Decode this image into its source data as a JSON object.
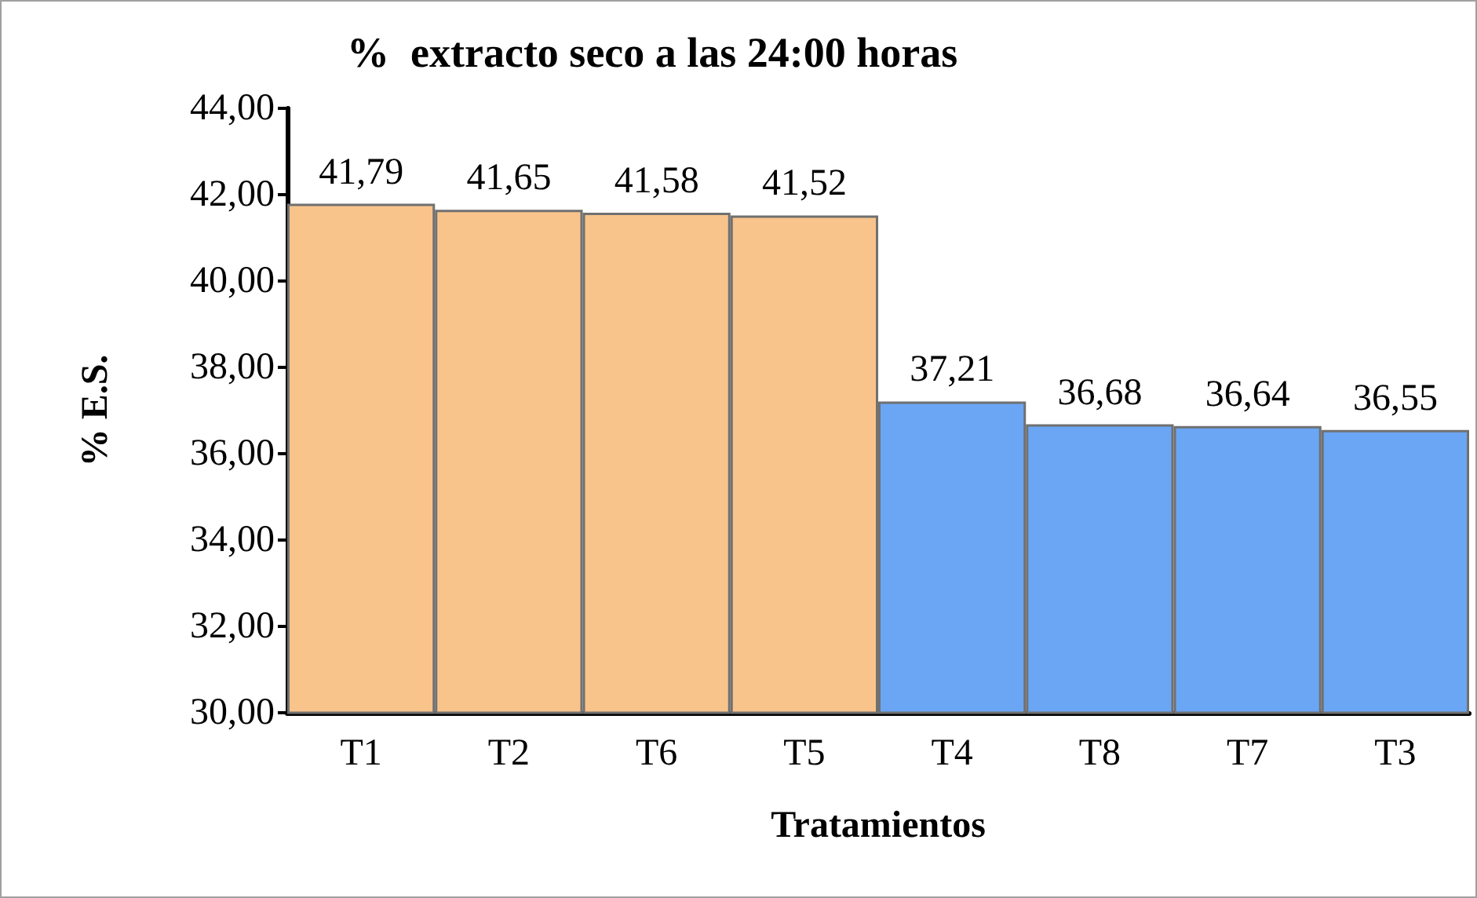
{
  "chart_data": {
    "type": "bar",
    "title": "%  extracto seco a las 24:00 horas",
    "xlabel": "Tratamientos",
    "ylabel": "% E.S.",
    "categories": [
      "T1",
      "T2",
      "T6",
      "T5",
      "T4",
      "T8",
      "T7",
      "T3"
    ],
    "values": [
      41.79,
      41.65,
      41.58,
      41.52,
      37.21,
      36.68,
      36.64,
      36.55
    ],
    "colors": [
      "#f8c48c",
      "#f8c48c",
      "#f8c48c",
      "#f8c48c",
      "#6aa6f4",
      "#6aa6f4",
      "#6aa6f4",
      "#6aa6f4"
    ],
    "value_labels": [
      "41,79",
      "41,65",
      "41,58",
      "41,52",
      "37,21",
      "36,68",
      "36,64",
      "36,55"
    ],
    "ylim": [
      30,
      44
    ],
    "yticks": [
      {
        "value": 30,
        "label": "30,00"
      },
      {
        "value": 32,
        "label": "32,00"
      },
      {
        "value": 34,
        "label": "34,00"
      },
      {
        "value": 36,
        "label": "36,00"
      },
      {
        "value": 38,
        "label": "38,00"
      },
      {
        "value": 40,
        "label": "40,00"
      },
      {
        "value": 42,
        "label": "42,00"
      },
      {
        "value": 44,
        "label": "44,00"
      }
    ],
    "grid": false
  }
}
